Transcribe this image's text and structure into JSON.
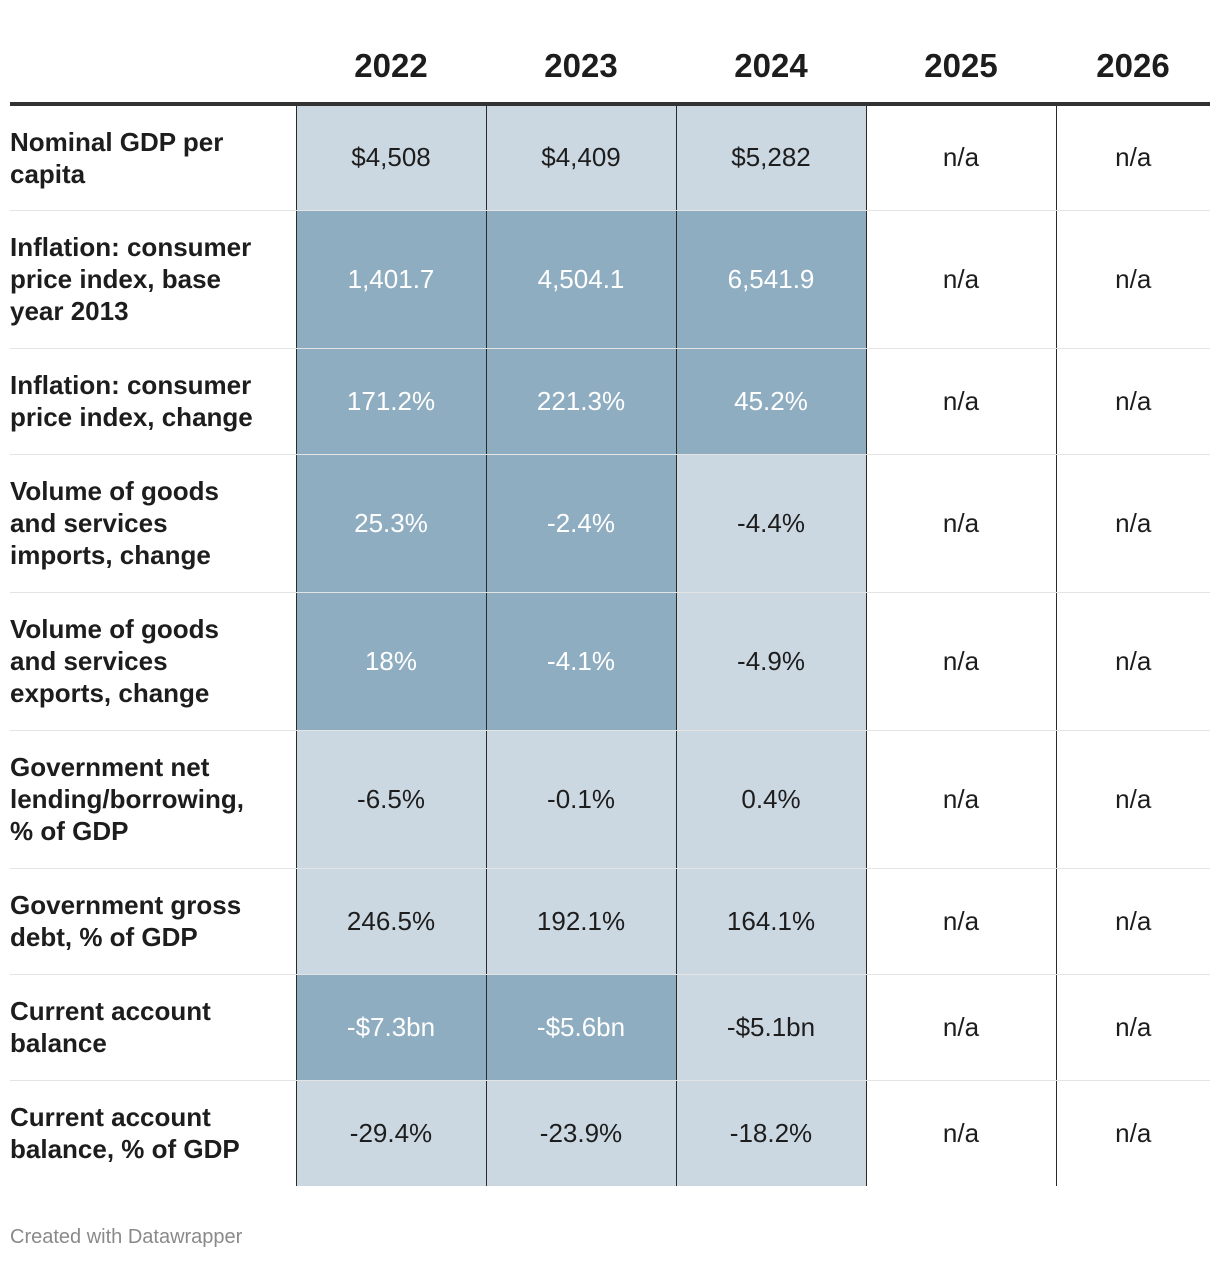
{
  "chart_data": {
    "type": "table",
    "columns": [
      "2022",
      "2023",
      "2024",
      "2025",
      "2026"
    ],
    "rows": [
      {
        "label": "Nominal GDP per capita",
        "values": [
          "$4,508",
          "$4,409",
          "$5,282",
          "n/a",
          "n/a"
        ],
        "shade": [
          "light",
          "light",
          "light",
          "plain",
          "plain"
        ]
      },
      {
        "label": "Inflation: consumer price index, base year 2013",
        "values": [
          "1,401.7",
          "4,504.1",
          "6,541.9",
          "n/a",
          "n/a"
        ],
        "shade": [
          "dark",
          "dark",
          "dark",
          "plain",
          "plain"
        ]
      },
      {
        "label": "Inflation: consumer price index, change",
        "values": [
          "171.2%",
          "221.3%",
          "45.2%",
          "n/a",
          "n/a"
        ],
        "shade": [
          "dark",
          "dark",
          "dark",
          "plain",
          "plain"
        ]
      },
      {
        "label": "Volume of goods and services imports, change",
        "values": [
          "25.3%",
          "-2.4%",
          "-4.4%",
          "n/a",
          "n/a"
        ],
        "shade": [
          "dark",
          "dark",
          "light",
          "plain",
          "plain"
        ]
      },
      {
        "label": "Volume of goods and services exports, change",
        "values": [
          "18%",
          "-4.1%",
          "-4.9%",
          "n/a",
          "n/a"
        ],
        "shade": [
          "dark",
          "dark",
          "light",
          "plain",
          "plain"
        ]
      },
      {
        "label": "Government net lending/borrowing, % of GDP",
        "values": [
          "-6.5%",
          "-0.1%",
          "0.4%",
          "n/a",
          "n/a"
        ],
        "shade": [
          "light",
          "light",
          "light",
          "plain",
          "plain"
        ]
      },
      {
        "label": "Government gross debt, % of GDP",
        "values": [
          "246.5%",
          "192.1%",
          "164.1%",
          "n/a",
          "n/a"
        ],
        "shade": [
          "light",
          "light",
          "light",
          "plain",
          "plain"
        ]
      },
      {
        "label": "Current account balance",
        "values": [
          "-$7.3bn",
          "-$5.6bn",
          "-$5.1bn",
          "n/a",
          "n/a"
        ],
        "shade": [
          "dark",
          "dark",
          "light",
          "plain",
          "plain"
        ]
      },
      {
        "label": "Current account balance, % of GDP",
        "values": [
          "-29.4%",
          "-23.9%",
          "-18.2%",
          "n/a",
          "n/a"
        ],
        "shade": [
          "light",
          "light",
          "light",
          "plain",
          "plain"
        ]
      }
    ],
    "colors": {
      "light": "#cbd8e1",
      "dark": "#8fadc1",
      "plain": "#ffffff"
    }
  },
  "footer": "Created with Datawrapper"
}
